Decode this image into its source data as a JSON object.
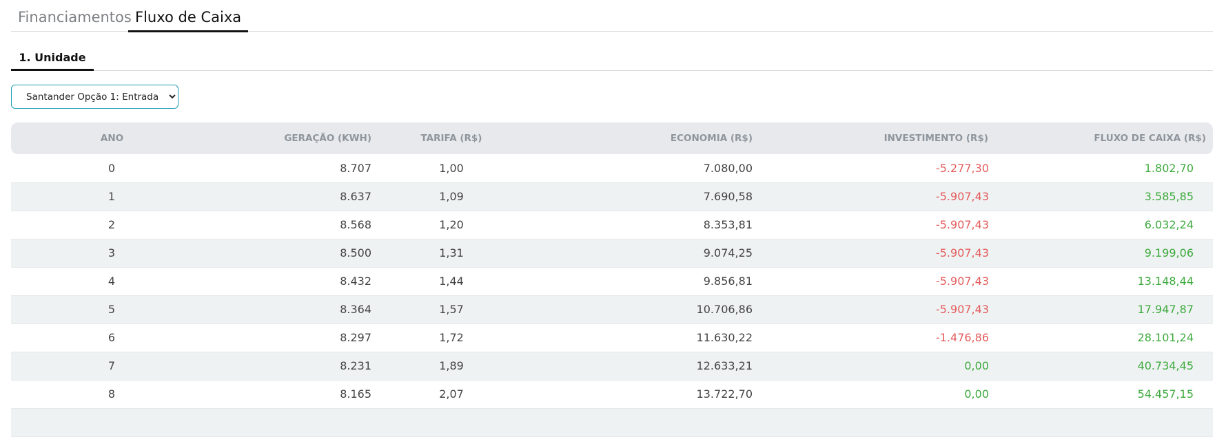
{
  "tabs": [
    {
      "label": "Financiamentos",
      "active": false
    },
    {
      "label": "Fluxo de Caixa",
      "active": true
    }
  ],
  "subtab": {
    "label": "1. Unidade"
  },
  "select": {
    "value": "Santander Opção 1: Entrada"
  },
  "table": {
    "columns": [
      "ANO",
      "GERAÇÃO (KWH)",
      "TARIFA (R$)",
      "ECONOMIA (R$)",
      "INVESTIMENTO (R$)",
      "FLUXO DE CAIXA (R$)"
    ],
    "rows": [
      [
        "0",
        "8.707",
        "1,00",
        "7.080,00",
        "-5.277,30",
        "1.802,70"
      ],
      [
        "1",
        "8.637",
        "1,09",
        "7.690,58",
        "-5.907,43",
        "3.585,85"
      ],
      [
        "2",
        "8.568",
        "1,20",
        "8.353,81",
        "-5.907,43",
        "6.032,24"
      ],
      [
        "3",
        "8.500",
        "1,31",
        "9.074,25",
        "-5.907,43",
        "9.199,06"
      ],
      [
        "4",
        "8.432",
        "1,44",
        "9.856,81",
        "-5.907,43",
        "13.148,44"
      ],
      [
        "5",
        "8.364",
        "1,57",
        "10.706,86",
        "-5.907,43",
        "17.947,87"
      ],
      [
        "6",
        "8.297",
        "1,72",
        "11.630,22",
        "-1.476,86",
        "28.101,24"
      ],
      [
        "7",
        "8.231",
        "1,89",
        "12.633,21",
        "0,00",
        "40.734,45"
      ],
      [
        "8",
        "8.165",
        "2,07",
        "13.722,70",
        "0,00",
        "54.457,15"
      ]
    ]
  },
  "colors": {
    "negative": "#e45b5b",
    "positive": "#3daa3d",
    "accent": "#1a9bb0"
  }
}
